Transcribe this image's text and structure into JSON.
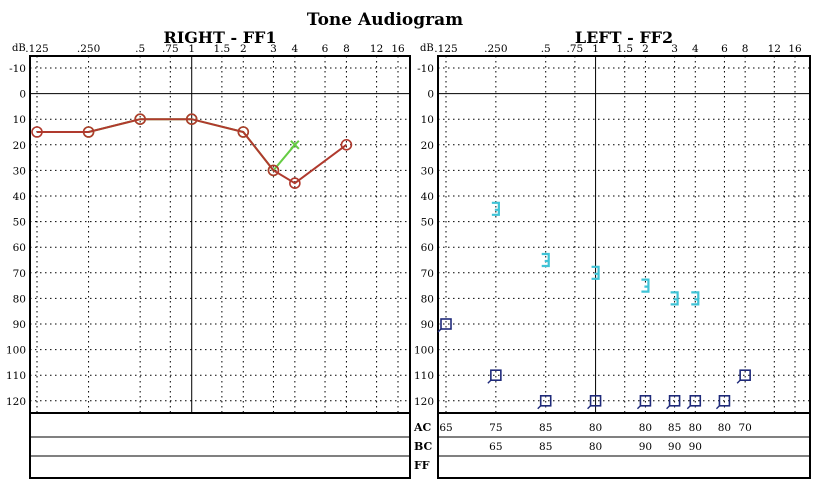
{
  "title": "Tone Audiogram",
  "y_axis_unit": "dB",
  "colors": {
    "frame": "#000000",
    "grid": "#000000",
    "right_ac_green": "#66cc44",
    "right_bc_red": "#b03a2e",
    "left_bc_cyan": "#3fc3d6",
    "left_ac_navy": "#1f2a7a"
  },
  "chart_data": [
    {
      "type": "line",
      "name": "right-ear",
      "title": "RIGHT - FF1",
      "x_ticks": [
        ".125",
        ".250",
        ".5",
        ".75",
        "1",
        "1.5",
        "2",
        "3",
        "4",
        "6",
        "8",
        "12",
        "16"
      ],
      "x_tick_values": [
        0.125,
        0.25,
        0.5,
        0.75,
        1,
        1.5,
        2,
        3,
        4,
        6,
        8,
        12,
        16
      ],
      "x_scale": "log",
      "y_ticks": [
        -10,
        0,
        10,
        20,
        30,
        40,
        50,
        60,
        70,
        80,
        90,
        100,
        110,
        120
      ],
      "ylim": [
        -10,
        125
      ],
      "y_inverted": true,
      "grid": true,
      "series": [
        {
          "marker": "circle",
          "color": "#66cc44",
          "points": [
            {
              "x": 0.25,
              "y": 15
            },
            {
              "x": 0.5,
              "y": 10
            },
            {
              "x": 1,
              "y": 10
            },
            {
              "x": 2,
              "y": 15
            },
            {
              "x": 3,
              "y": 30
            },
            {
              "x": 4,
              "y": 20
            }
          ],
          "marker_overrides": [
            {
              "index": 5,
              "marker": "x"
            }
          ]
        },
        {
          "marker": "circle",
          "color": "#b03a2e",
          "points": [
            {
              "x": 0.125,
              "y": 15
            },
            {
              "x": 0.25,
              "y": 15
            },
            {
              "x": 0.5,
              "y": 10
            },
            {
              "x": 1,
              "y": 10
            },
            {
              "x": 2,
              "y": 15
            },
            {
              "x": 3,
              "y": 30
            },
            {
              "x": 4,
              "y": 35
            },
            {
              "x": 8,
              "y": 20
            }
          ]
        }
      ],
      "table": {
        "rows": [
          "AC",
          "BC",
          "FF"
        ],
        "values": [
          [],
          [],
          []
        ]
      }
    },
    {
      "type": "scatter",
      "name": "left-ear",
      "title": "LEFT - FF2",
      "x_ticks": [
        ".125",
        ".250",
        ".5",
        ".75",
        "1",
        "1.5",
        "2",
        "3",
        "4",
        "6",
        "8",
        "12",
        "16"
      ],
      "x_tick_values": [
        0.125,
        0.25,
        0.5,
        0.75,
        1,
        1.5,
        2,
        3,
        4,
        6,
        8,
        12,
        16
      ],
      "x_scale": "log",
      "y_ticks": [
        -10,
        0,
        10,
        20,
        30,
        40,
        50,
        60,
        70,
        80,
        90,
        100,
        110,
        120
      ],
      "ylim": [
        -10,
        125
      ],
      "y_inverted": true,
      "grid": true,
      "series": [
        {
          "marker": "bracket",
          "color": "#3fc3d6",
          "points": [
            {
              "x": 0.25,
              "y": 45
            },
            {
              "x": 0.5,
              "y": 65
            },
            {
              "x": 1,
              "y": 70
            },
            {
              "x": 2,
              "y": 75
            },
            {
              "x": 3,
              "y": 80
            },
            {
              "x": 4,
              "y": 80
            }
          ]
        },
        {
          "marker": "square",
          "color": "#1f2a7a",
          "points": [
            {
              "x": 0.125,
              "y": 90
            },
            {
              "x": 0.25,
              "y": 110
            },
            {
              "x": 0.5,
              "y": 120
            },
            {
              "x": 1,
              "y": 120
            },
            {
              "x": 2,
              "y": 120
            },
            {
              "x": 3,
              "y": 120
            },
            {
              "x": 4,
              "y": 120
            },
            {
              "x": 6,
              "y": 120
            },
            {
              "x": 8,
              "y": 110
            }
          ]
        }
      ],
      "table": {
        "rows": [
          "AC",
          "BC",
          "FF"
        ],
        "values": [
          [
            {
              "x": 0.125,
              "v": "65"
            },
            {
              "x": 0.25,
              "v": "75"
            },
            {
              "x": 0.5,
              "v": "85"
            },
            {
              "x": 1,
              "v": "80"
            },
            {
              "x": 2,
              "v": "80"
            },
            {
              "x": 3,
              "v": "85"
            },
            {
              "x": 4,
              "v": "80"
            },
            {
              "x": 6,
              "v": "80"
            },
            {
              "x": 8,
              "v": "70"
            }
          ],
          [
            {
              "x": 0.25,
              "v": "65"
            },
            {
              "x": 0.5,
              "v": "85"
            },
            {
              "x": 1,
              "v": "80"
            },
            {
              "x": 2,
              "v": "90"
            },
            {
              "x": 3,
              "v": "90"
            },
            {
              "x": 4,
              "v": "90"
            }
          ],
          []
        ]
      }
    }
  ]
}
